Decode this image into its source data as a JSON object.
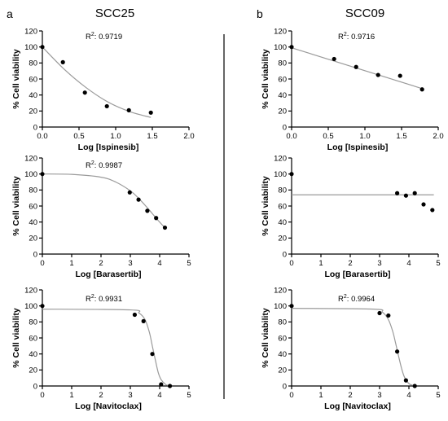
{
  "figure": {
    "panel_labels": [
      "a",
      "b"
    ],
    "column_titles": [
      "SCC25",
      "SCC09"
    ]
  },
  "chart_data": [
    {
      "type": "scatter",
      "id": "scc25-ispinesib",
      "column": "SCC25",
      "xlabel": "Log [Ispinesib]",
      "ylabel": "% Cell viability",
      "r2_label": "0.9719",
      "xlim": [
        0,
        2
      ],
      "ylim": [
        0,
        120
      ],
      "xticks": [
        0,
        0.5,
        1,
        1.5,
        2
      ],
      "xtick_labels": [
        "0.0",
        "0.5",
        "1.0",
        "1.5",
        "2.0"
      ],
      "yticks": [
        0,
        20,
        40,
        60,
        80,
        100,
        120
      ],
      "points": [
        [
          0,
          100
        ],
        [
          0.28,
          81
        ],
        [
          0.58,
          43
        ],
        [
          0.88,
          26
        ],
        [
          1.18,
          21
        ],
        [
          1.48,
          18
        ]
      ],
      "fit": {
        "kind": "curve",
        "x": [
          0,
          0.3,
          0.6,
          0.9,
          1.2,
          1.48
        ],
        "y": [
          100,
          72,
          49,
          31,
          19,
          12
        ]
      }
    },
    {
      "type": "scatter",
      "id": "scc09-ispinesib",
      "column": "SCC09",
      "xlabel": "Log [Ispinesib]",
      "ylabel": "% Cell viability",
      "r2_label": "0.9716",
      "xlim": [
        0,
        2
      ],
      "ylim": [
        0,
        120
      ],
      "xticks": [
        0,
        0.5,
        1,
        1.5,
        2
      ],
      "xtick_labels": [
        "0.0",
        "0.5",
        "1.0",
        "1.5",
        "2.0"
      ],
      "yticks": [
        0,
        20,
        40,
        60,
        80,
        100,
        120
      ],
      "points": [
        [
          0,
          100
        ],
        [
          0.58,
          85
        ],
        [
          0.88,
          75
        ],
        [
          1.18,
          65
        ],
        [
          1.48,
          64
        ],
        [
          1.78,
          47
        ]
      ],
      "fit": {
        "kind": "curve",
        "x": [
          0,
          1.78
        ],
        "y": [
          99,
          48
        ]
      }
    },
    {
      "type": "scatter",
      "id": "scc25-barasertib",
      "column": "SCC25",
      "xlabel": "Log [Barasertib]",
      "ylabel": "% Cell viability",
      "r2_label": "0.9987",
      "xlim": [
        0,
        5
      ],
      "ylim": [
        0,
        120
      ],
      "xticks": [
        0,
        1,
        2,
        3,
        4,
        5
      ],
      "xtick_labels": [
        "0",
        "1",
        "2",
        "3",
        "4",
        "5"
      ],
      "yticks": [
        0,
        20,
        40,
        60,
        80,
        100,
        120
      ],
      "points": [
        [
          0,
          100
        ],
        [
          2.98,
          77
        ],
        [
          3.28,
          68
        ],
        [
          3.58,
          54
        ],
        [
          3.88,
          45
        ],
        [
          4.18,
          33
        ]
      ],
      "fit": {
        "kind": "curve",
        "x": [
          0,
          1,
          2,
          2.5,
          3,
          3.3,
          3.6,
          3.9,
          4.2
        ],
        "y": [
          100,
          99.5,
          96,
          90,
          79,
          69,
          57,
          44,
          32
        ]
      }
    },
    {
      "type": "scatter",
      "id": "scc09-barasertib",
      "column": "SCC09",
      "xlabel": "Log [Barasertib]",
      "ylabel": "% Cell viability",
      "r2_label": "",
      "xlim": [
        0,
        5
      ],
      "ylim": [
        0,
        120
      ],
      "xticks": [
        0,
        1,
        2,
        3,
        4,
        5
      ],
      "xtick_labels": [
        "0",
        "1",
        "2",
        "3",
        "4",
        "5"
      ],
      "yticks": [
        0,
        20,
        40,
        60,
        80,
        100,
        120
      ],
      "points": [
        [
          0,
          100
        ],
        [
          3.6,
          76
        ],
        [
          3.9,
          73
        ],
        [
          4.2,
          76
        ],
        [
          4.5,
          62
        ],
        [
          4.8,
          55
        ]
      ],
      "fit": {
        "kind": "curve",
        "x": [
          0,
          4.85
        ],
        "y": [
          74,
          74
        ]
      }
    },
    {
      "type": "scatter",
      "id": "scc25-navitoclax",
      "column": "SCC25",
      "xlabel": "Log [Navitoclax]",
      "ylabel": "% Cell viability",
      "r2_label": "0.9931",
      "xlim": [
        0,
        5
      ],
      "ylim": [
        0,
        120
      ],
      "xticks": [
        0,
        1,
        2,
        3,
        4,
        5
      ],
      "xtick_labels": [
        "0",
        "1",
        "2",
        "3",
        "4",
        "5"
      ],
      "yticks": [
        0,
        20,
        40,
        60,
        80,
        100,
        120
      ],
      "points": [
        [
          0,
          100
        ],
        [
          3.15,
          89
        ],
        [
          3.45,
          81
        ],
        [
          3.75,
          40
        ],
        [
          4.05,
          2
        ],
        [
          4.35,
          0
        ]
      ],
      "fit": {
        "kind": "curve",
        "x": [
          0,
          3.0,
          3.3,
          3.5,
          3.65,
          3.75,
          3.85,
          3.95,
          4.05,
          4.2,
          4.3
        ],
        "y": [
          96,
          95,
          91,
          83,
          67,
          50,
          33,
          17,
          8,
          2,
          0.5
        ]
      }
    },
    {
      "type": "scatter",
      "id": "scc09-navitoclax",
      "column": "SCC09",
      "xlabel": "Log [Navitoclax]",
      "ylabel": "% Cell viability",
      "r2_label": "0.9964",
      "xlim": [
        0,
        5
      ],
      "ylim": [
        0,
        120
      ],
      "xticks": [
        0,
        1,
        2,
        3,
        4,
        5
      ],
      "xtick_labels": [
        "0",
        "1",
        "2",
        "3",
        "4",
        "5"
      ],
      "yticks": [
        0,
        20,
        40,
        60,
        80,
        100,
        120
      ],
      "points": [
        [
          0,
          100
        ],
        [
          3.0,
          91
        ],
        [
          3.3,
          88
        ],
        [
          3.6,
          43
        ],
        [
          3.9,
          7
        ],
        [
          4.2,
          0
        ]
      ],
      "fit": {
        "kind": "curve",
        "x": [
          0,
          2.8,
          3.1,
          3.3,
          3.45,
          3.55,
          3.65,
          3.75,
          3.85,
          4.0,
          4.15
        ],
        "y": [
          97,
          96,
          92,
          83,
          68,
          53,
          37,
          22,
          11,
          3,
          0.5
        ]
      }
    }
  ]
}
